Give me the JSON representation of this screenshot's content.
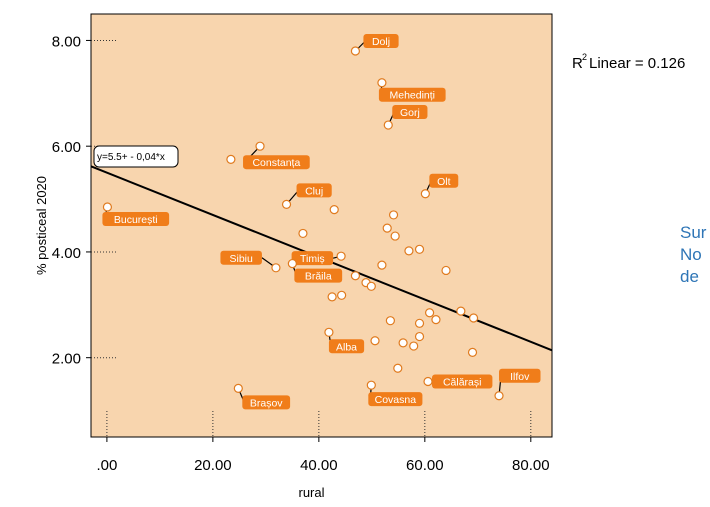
{
  "chart_data": {
    "type": "scatter",
    "title": "",
    "xlabel": "rural",
    "ylabel": "% posticeal 2020",
    "xlim": [
      -3,
      84
    ],
    "ylim": [
      0.5,
      8.5
    ],
    "x_ticks": [
      ".00",
      "20.00",
      "40.00",
      "60.00",
      "80.00"
    ],
    "x_tick_values": [
      0,
      20,
      40,
      60,
      80
    ],
    "y_ticks": [
      "2.00",
      "4.00",
      "6.00",
      "8.00"
    ],
    "y_tick_values": [
      2,
      4,
      6,
      8
    ],
    "grid": false,
    "background": "#f8d5ae",
    "marker_fill": "#ffffff",
    "marker_edge": "#e07b1f",
    "label_color": "#f07d1a",
    "label_text_color": "#ffffff",
    "fit_line": {
      "type": "linear",
      "intercept": 5.5,
      "slope": -0.04,
      "equation_label": "y=5.5+ - 0,04*x",
      "r2_label": "Linear = 0.126"
    },
    "points": [
      {
        "x": 46.9,
        "y": 7.8,
        "label": "Dolj"
      },
      {
        "x": 51.9,
        "y": 7.2,
        "label": "Mehedinți"
      },
      {
        "x": 53.1,
        "y": 6.4,
        "label": "Gorj"
      },
      {
        "x": 28.9,
        "y": 6.0,
        "label": "Constanța"
      },
      {
        "x": 23.4,
        "y": 5.75,
        "label": ""
      },
      {
        "x": 60.1,
        "y": 5.1,
        "label": "Olt"
      },
      {
        "x": 33.9,
        "y": 4.9,
        "label": "Cluj"
      },
      {
        "x": 0.1,
        "y": 4.85,
        "label": "București"
      },
      {
        "x": 42.9,
        "y": 4.8,
        "label": ""
      },
      {
        "x": 54.1,
        "y": 4.7,
        "label": ""
      },
      {
        "x": 52.9,
        "y": 4.45,
        "label": ""
      },
      {
        "x": 37.0,
        "y": 4.35,
        "label": ""
      },
      {
        "x": 54.4,
        "y": 4.3,
        "label": ""
      },
      {
        "x": 59.0,
        "y": 4.05,
        "label": ""
      },
      {
        "x": 57.0,
        "y": 4.02,
        "label": ""
      },
      {
        "x": 44.2,
        "y": 3.92,
        "label": "Timiș"
      },
      {
        "x": 51.9,
        "y": 3.75,
        "label": ""
      },
      {
        "x": 31.9,
        "y": 3.7,
        "label": "Sibiu"
      },
      {
        "x": 64.0,
        "y": 3.65,
        "label": ""
      },
      {
        "x": 35.0,
        "y": 3.78,
        "label": "Brăila"
      },
      {
        "x": 46.9,
        "y": 3.55,
        "label": ""
      },
      {
        "x": 48.9,
        "y": 3.42,
        "label": ""
      },
      {
        "x": 49.9,
        "y": 3.35,
        "label": ""
      },
      {
        "x": 42.5,
        "y": 3.15,
        "label": ""
      },
      {
        "x": 44.3,
        "y": 3.18,
        "label": ""
      },
      {
        "x": 66.8,
        "y": 2.88,
        "label": ""
      },
      {
        "x": 60.9,
        "y": 2.85,
        "label": ""
      },
      {
        "x": 69.2,
        "y": 2.75,
        "label": ""
      },
      {
        "x": 62.1,
        "y": 2.72,
        "label": ""
      },
      {
        "x": 53.5,
        "y": 2.7,
        "label": ""
      },
      {
        "x": 59.0,
        "y": 2.65,
        "label": ""
      },
      {
        "x": 41.9,
        "y": 2.48,
        "label": "Alba"
      },
      {
        "x": 59.0,
        "y": 2.4,
        "label": ""
      },
      {
        "x": 50.6,
        "y": 2.32,
        "label": ""
      },
      {
        "x": 55.9,
        "y": 2.28,
        "label": ""
      },
      {
        "x": 57.9,
        "y": 2.22,
        "label": ""
      },
      {
        "x": 69.0,
        "y": 2.1,
        "label": ""
      },
      {
        "x": 54.9,
        "y": 1.8,
        "label": ""
      },
      {
        "x": 24.8,
        "y": 1.42,
        "label": "Brașov"
      },
      {
        "x": 49.9,
        "y": 1.48,
        "label": "Covasna"
      },
      {
        "x": 60.6,
        "y": 1.55,
        "label": "Călărași"
      },
      {
        "x": 74.0,
        "y": 1.28,
        "label": "Ilfov"
      }
    ]
  },
  "side_note": {
    "line1": "Sur",
    "line2": "No",
    "line3": "de"
  }
}
